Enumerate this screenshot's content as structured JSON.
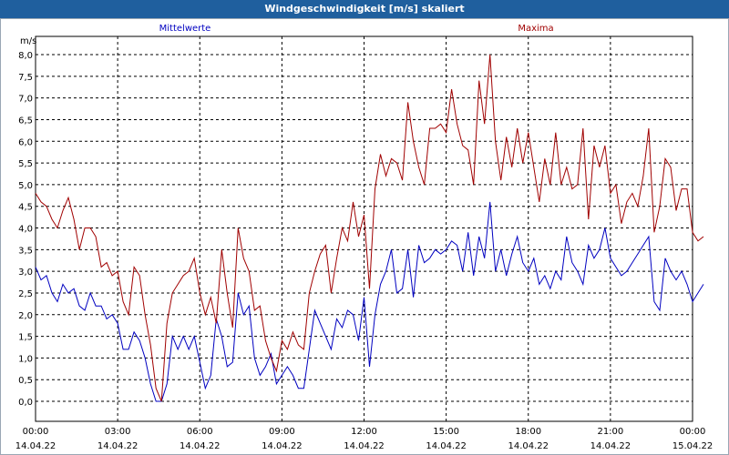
{
  "chart_data": {
    "type": "line",
    "title": "Windgeschwindigkeit [m/s] skaliert",
    "ylabel": "m/s",
    "ylim": [
      -0.3,
      8.3
    ],
    "yticks": [
      "0,0",
      "0,5",
      "1,0",
      "1,5",
      "2,0",
      "2,5",
      "3,0",
      "3,5",
      "4,0",
      "4,5",
      "5,0",
      "5,5",
      "6,0",
      "6,5",
      "7,0",
      "7,5",
      "8,0"
    ],
    "xticks": [
      {
        "time": "00:00",
        "date": "14.04.22"
      },
      {
        "time": "03:00",
        "date": "14.04.22"
      },
      {
        "time": "06:00",
        "date": "14.04.22"
      },
      {
        "time": "09:00",
        "date": "14.04.22"
      },
      {
        "time": "12:00",
        "date": "14.04.22"
      },
      {
        "time": "15:00",
        "date": "14.04.22"
      },
      {
        "time": "18:00",
        "date": "14.04.22"
      },
      {
        "time": "21:00",
        "date": "14.04.22"
      },
      {
        "time": "00:00",
        "date": "15.04.22"
      }
    ],
    "x_unit": "hours since 14.04.22 00:00",
    "grid": true,
    "series": [
      {
        "name": "Mittelwerte",
        "color": "#0000c0",
        "points": [
          [
            0.0,
            3.1
          ],
          [
            0.2,
            2.8
          ],
          [
            0.4,
            2.9
          ],
          [
            0.6,
            2.5
          ],
          [
            0.8,
            2.3
          ],
          [
            1.0,
            2.7
          ],
          [
            1.2,
            2.5
          ],
          [
            1.4,
            2.6
          ],
          [
            1.6,
            2.2
          ],
          [
            1.8,
            2.1
          ],
          [
            2.0,
            2.5
          ],
          [
            2.2,
            2.2
          ],
          [
            2.4,
            2.2
          ],
          [
            2.6,
            1.9
          ],
          [
            2.8,
            2.0
          ],
          [
            3.0,
            1.8
          ],
          [
            3.2,
            1.2
          ],
          [
            3.4,
            1.2
          ],
          [
            3.6,
            1.6
          ],
          [
            3.8,
            1.4
          ],
          [
            4.0,
            1.0
          ],
          [
            4.2,
            0.4
          ],
          [
            4.4,
            0.0
          ],
          [
            4.6,
            0.0
          ],
          [
            4.8,
            0.4
          ],
          [
            5.0,
            1.5
          ],
          [
            5.2,
            1.2
          ],
          [
            5.4,
            1.5
          ],
          [
            5.6,
            1.2
          ],
          [
            5.8,
            1.5
          ],
          [
            6.0,
            0.9
          ],
          [
            6.2,
            0.3
          ],
          [
            6.4,
            0.6
          ],
          [
            6.6,
            1.9
          ],
          [
            6.8,
            1.5
          ],
          [
            7.0,
            0.8
          ],
          [
            7.2,
            0.9
          ],
          [
            7.4,
            2.5
          ],
          [
            7.6,
            2.0
          ],
          [
            7.8,
            2.2
          ],
          [
            8.0,
            1.0
          ],
          [
            8.2,
            0.6
          ],
          [
            8.4,
            0.8
          ],
          [
            8.6,
            1.1
          ],
          [
            8.8,
            0.4
          ],
          [
            9.0,
            0.6
          ],
          [
            9.2,
            0.8
          ],
          [
            9.4,
            0.6
          ],
          [
            9.6,
            0.3
          ],
          [
            9.8,
            0.3
          ],
          [
            10.0,
            1.2
          ],
          [
            10.2,
            2.1
          ],
          [
            10.4,
            1.8
          ],
          [
            10.6,
            1.5
          ],
          [
            10.8,
            1.2
          ],
          [
            11.0,
            1.9
          ],
          [
            11.2,
            1.7
          ],
          [
            11.4,
            2.1
          ],
          [
            11.6,
            2.0
          ],
          [
            11.8,
            1.4
          ],
          [
            12.0,
            2.4
          ],
          [
            12.2,
            0.8
          ],
          [
            12.4,
            2.0
          ],
          [
            12.6,
            2.7
          ],
          [
            12.8,
            3.0
          ],
          [
            13.0,
            3.5
          ],
          [
            13.2,
            2.5
          ],
          [
            13.4,
            2.6
          ],
          [
            13.6,
            3.5
          ],
          [
            13.8,
            2.4
          ],
          [
            14.0,
            3.6
          ],
          [
            14.2,
            3.2
          ],
          [
            14.4,
            3.3
          ],
          [
            14.6,
            3.5
          ],
          [
            14.8,
            3.4
          ],
          [
            15.0,
            3.5
          ],
          [
            15.2,
            3.7
          ],
          [
            15.4,
            3.6
          ],
          [
            15.6,
            3.0
          ],
          [
            15.8,
            3.9
          ],
          [
            16.0,
            2.9
          ],
          [
            16.2,
            3.8
          ],
          [
            16.4,
            3.3
          ],
          [
            16.6,
            4.6
          ],
          [
            16.8,
            3.0
          ],
          [
            17.0,
            3.5
          ],
          [
            17.2,
            2.9
          ],
          [
            17.4,
            3.4
          ],
          [
            17.6,
            3.8
          ],
          [
            17.8,
            3.2
          ],
          [
            18.0,
            3.0
          ],
          [
            18.2,
            3.3
          ],
          [
            18.4,
            2.7
          ],
          [
            18.6,
            2.9
          ],
          [
            18.8,
            2.6
          ],
          [
            19.0,
            3.0
          ],
          [
            19.2,
            2.8
          ],
          [
            19.4,
            3.8
          ],
          [
            19.6,
            3.2
          ],
          [
            19.8,
            3.0
          ],
          [
            20.0,
            2.7
          ],
          [
            20.2,
            3.6
          ],
          [
            20.4,
            3.3
          ],
          [
            20.6,
            3.5
          ],
          [
            20.8,
            4.0
          ],
          [
            21.0,
            3.3
          ],
          [
            21.2,
            3.1
          ],
          [
            21.4,
            2.9
          ],
          [
            21.6,
            3.0
          ],
          [
            21.8,
            3.2
          ],
          [
            22.0,
            3.4
          ],
          [
            22.2,
            3.6
          ],
          [
            22.4,
            3.8
          ],
          [
            22.6,
            2.3
          ],
          [
            22.8,
            2.1
          ],
          [
            23.0,
            3.3
          ],
          [
            23.2,
            3.0
          ],
          [
            23.4,
            2.8
          ],
          [
            23.6,
            3.0
          ],
          [
            23.8,
            2.7
          ],
          [
            24.0,
            2.3
          ],
          [
            24.2,
            2.5
          ],
          [
            24.4,
            2.7
          ]
        ]
      },
      {
        "name": "Maxima",
        "color": "#a00000",
        "points": [
          [
            0.0,
            4.8
          ],
          [
            0.2,
            4.6
          ],
          [
            0.4,
            4.5
          ],
          [
            0.6,
            4.2
          ],
          [
            0.8,
            4.0
          ],
          [
            1.0,
            4.4
          ],
          [
            1.2,
            4.7
          ],
          [
            1.4,
            4.2
          ],
          [
            1.6,
            3.5
          ],
          [
            1.8,
            4.0
          ],
          [
            2.0,
            4.0
          ],
          [
            2.2,
            3.8
          ],
          [
            2.4,
            3.1
          ],
          [
            2.6,
            3.2
          ],
          [
            2.8,
            2.9
          ],
          [
            3.0,
            3.0
          ],
          [
            3.2,
            2.3
          ],
          [
            3.4,
            2.0
          ],
          [
            3.6,
            3.1
          ],
          [
            3.8,
            2.9
          ],
          [
            4.0,
            2.0
          ],
          [
            4.2,
            1.3
          ],
          [
            4.4,
            0.3
          ],
          [
            4.6,
            0.0
          ],
          [
            4.8,
            1.8
          ],
          [
            5.0,
            2.5
          ],
          [
            5.2,
            2.7
          ],
          [
            5.4,
            2.9
          ],
          [
            5.6,
            3.0
          ],
          [
            5.8,
            3.3
          ],
          [
            6.0,
            2.5
          ],
          [
            6.2,
            2.0
          ],
          [
            6.4,
            2.4
          ],
          [
            6.6,
            1.8
          ],
          [
            6.8,
            3.5
          ],
          [
            7.0,
            2.5
          ],
          [
            7.2,
            1.7
          ],
          [
            7.4,
            4.0
          ],
          [
            7.6,
            3.3
          ],
          [
            7.8,
            3.0
          ],
          [
            8.0,
            2.1
          ],
          [
            8.2,
            2.2
          ],
          [
            8.4,
            1.4
          ],
          [
            8.6,
            1.0
          ],
          [
            8.8,
            0.7
          ],
          [
            9.0,
            1.4
          ],
          [
            9.2,
            1.2
          ],
          [
            9.4,
            1.6
          ],
          [
            9.6,
            1.3
          ],
          [
            9.8,
            1.2
          ],
          [
            10.0,
            2.5
          ],
          [
            10.2,
            3.0
          ],
          [
            10.4,
            3.4
          ],
          [
            10.6,
            3.6
          ],
          [
            10.8,
            2.5
          ],
          [
            11.0,
            3.3
          ],
          [
            11.2,
            4.0
          ],
          [
            11.4,
            3.7
          ],
          [
            11.6,
            4.6
          ],
          [
            11.8,
            3.8
          ],
          [
            12.0,
            4.3
          ],
          [
            12.2,
            2.6
          ],
          [
            12.4,
            4.9
          ],
          [
            12.6,
            5.7
          ],
          [
            12.8,
            5.2
          ],
          [
            13.0,
            5.6
          ],
          [
            13.2,
            5.5
          ],
          [
            13.4,
            5.1
          ],
          [
            13.6,
            6.9
          ],
          [
            13.8,
            6.0
          ],
          [
            14.0,
            5.4
          ],
          [
            14.2,
            5.0
          ],
          [
            14.4,
            6.3
          ],
          [
            14.6,
            6.3
          ],
          [
            14.8,
            6.4
          ],
          [
            15.0,
            6.2
          ],
          [
            15.2,
            7.2
          ],
          [
            15.4,
            6.4
          ],
          [
            15.6,
            5.9
          ],
          [
            15.8,
            5.8
          ],
          [
            16.0,
            5.0
          ],
          [
            16.2,
            7.4
          ],
          [
            16.4,
            6.4
          ],
          [
            16.6,
            8.0
          ],
          [
            16.8,
            6.0
          ],
          [
            17.0,
            5.1
          ],
          [
            17.2,
            6.1
          ],
          [
            17.4,
            5.4
          ],
          [
            17.6,
            6.3
          ],
          [
            17.8,
            5.5
          ],
          [
            18.0,
            6.2
          ],
          [
            18.2,
            5.4
          ],
          [
            18.4,
            4.6
          ],
          [
            18.6,
            5.6
          ],
          [
            18.8,
            5.0
          ],
          [
            19.0,
            6.2
          ],
          [
            19.2,
            5.0
          ],
          [
            19.4,
            5.4
          ],
          [
            19.6,
            4.9
          ],
          [
            19.8,
            5.0
          ],
          [
            20.0,
            6.3
          ],
          [
            20.2,
            4.2
          ],
          [
            20.4,
            5.9
          ],
          [
            20.6,
            5.4
          ],
          [
            20.8,
            5.9
          ],
          [
            21.0,
            4.8
          ],
          [
            21.2,
            5.0
          ],
          [
            21.4,
            4.1
          ],
          [
            21.6,
            4.6
          ],
          [
            21.8,
            4.8
          ],
          [
            22.0,
            4.5
          ],
          [
            22.2,
            5.2
          ],
          [
            22.4,
            6.3
          ],
          [
            22.6,
            3.9
          ],
          [
            22.8,
            4.5
          ],
          [
            23.0,
            5.6
          ],
          [
            23.2,
            5.4
          ],
          [
            23.4,
            4.4
          ],
          [
            23.6,
            4.9
          ],
          [
            23.8,
            4.9
          ],
          [
            24.0,
            3.9
          ],
          [
            24.2,
            3.7
          ],
          [
            24.4,
            3.8
          ]
        ]
      }
    ]
  }
}
